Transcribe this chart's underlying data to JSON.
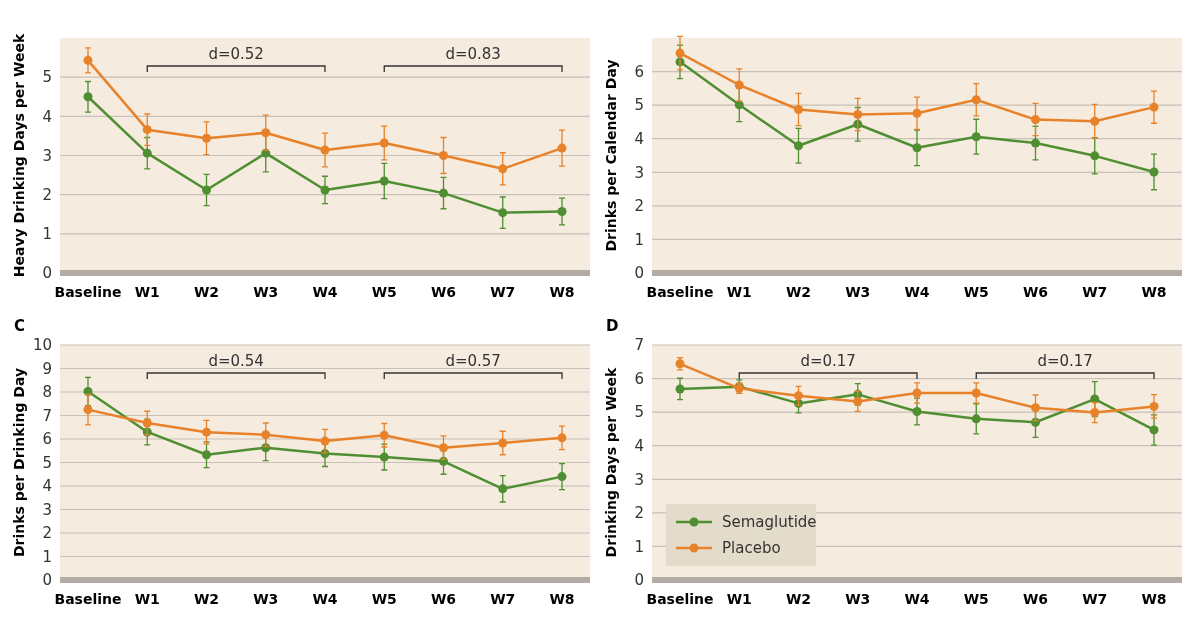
{
  "chart_data": [
    {
      "type": "line",
      "ylabel": "Heavy Drinking Days per Week",
      "categories": [
        "Baseline",
        "W1",
        "W2",
        "W3",
        "W4",
        "W5",
        "W6",
        "W7",
        "W8"
      ],
      "ylim": [
        0,
        6
      ],
      "yticks": [
        0,
        1,
        2,
        3,
        4,
        5
      ],
      "grid": "y",
      "marker": "circle",
      "legend": false,
      "annotations": [
        "d=0.52",
        "d=0.83"
      ],
      "series": [
        {
          "color": "#4f8f32",
          "values": [
            4.5,
            3.06,
            2.12,
            3.06,
            2.12,
            2.35,
            2.04,
            1.54,
            1.57
          ],
          "errors": [
            0.39,
            0.4,
            0.4,
            0.48,
            0.35,
            0.45,
            0.4,
            0.4,
            0.34
          ]
        },
        {
          "color": "#e8822a",
          "values": [
            5.43,
            3.66,
            3.44,
            3.58,
            3.14,
            3.32,
            3.0,
            2.66,
            3.19
          ],
          "errors": [
            0.32,
            0.4,
            0.42,
            0.45,
            0.43,
            0.43,
            0.46,
            0.41,
            0.46
          ]
        }
      ]
    },
    {
      "type": "line",
      "ylabel": "Drinks per Calendar Day",
      "categories": [
        "Baseline",
        "W1",
        "W2",
        "W3",
        "W4",
        "W5",
        "W6",
        "W7",
        "W8"
      ],
      "ylim": [
        0,
        7
      ],
      "yticks": [
        0,
        1,
        2,
        3,
        4,
        5,
        6
      ],
      "grid": "y",
      "marker": "circle",
      "legend": false,
      "series": [
        {
          "color": "#4f8f32",
          "values": [
            6.29,
            5.01,
            3.79,
            4.43,
            3.73,
            4.06,
            3.87,
            3.49,
            3.01
          ],
          "errors": [
            0.5,
            0.5,
            0.52,
            0.5,
            0.53,
            0.52,
            0.5,
            0.54,
            0.53
          ]
        },
        {
          "color": "#e8822a",
          "values": [
            6.55,
            5.6,
            4.87,
            4.72,
            4.76,
            5.16,
            4.57,
            4.52,
            4.94
          ],
          "errors": [
            0.5,
            0.48,
            0.48,
            0.48,
            0.48,
            0.48,
            0.48,
            0.5,
            0.48
          ]
        }
      ]
    },
    {
      "type": "line",
      "title": "C",
      "ylabel": "Drinks per Drinking Day",
      "categories": [
        "Baseline",
        "W1",
        "W2",
        "W3",
        "W4",
        "W5",
        "W6",
        "W7",
        "W8"
      ],
      "ylim": [
        0,
        10
      ],
      "yticks": [
        0,
        1,
        2,
        3,
        4,
        5,
        6,
        7,
        8,
        9,
        10
      ],
      "grid": "y",
      "marker": "circle",
      "legend": false,
      "annotations": [
        "d=0.54",
        "d=0.57"
      ],
      "series": [
        {
          "color": "#4f8f32",
          "values": [
            8.02,
            6.3,
            5.33,
            5.63,
            5.38,
            5.23,
            5.05,
            3.88,
            4.4
          ],
          "errors": [
            0.6,
            0.55,
            0.55,
            0.55,
            0.55,
            0.55,
            0.55,
            0.56,
            0.55
          ]
        },
        {
          "color": "#e8822a",
          "values": [
            7.25,
            6.68,
            6.29,
            6.18,
            5.91,
            6.16,
            5.63,
            5.83,
            6.05
          ],
          "errors": [
            0.65,
            0.5,
            0.5,
            0.5,
            0.5,
            0.5,
            0.5,
            0.5,
            0.5
          ]
        }
      ]
    },
    {
      "type": "line",
      "title": "D",
      "ylabel": "Drinking Days per Week",
      "categories": [
        "Baseline",
        "W1",
        "W2",
        "W3",
        "W4",
        "W5",
        "W6",
        "W7",
        "W8"
      ],
      "ylim": [
        0,
        7
      ],
      "yticks": [
        0,
        1,
        2,
        3,
        4,
        5,
        6,
        7
      ],
      "grid": "y",
      "marker": "circle",
      "legend": "bottom left",
      "annotations": [
        "d=0.17",
        "d=0.17"
      ],
      "series": [
        {
          "name": "Semaglutide",
          "color": "#4f8f32",
          "values": [
            5.69,
            5.76,
            5.26,
            5.53,
            5.02,
            4.8,
            4.7,
            5.39,
            4.47
          ],
          "errors": [
            0.32,
            0.2,
            0.28,
            0.32,
            0.4,
            0.45,
            0.45,
            0.52,
            0.45
          ]
        },
        {
          "name": "Placebo",
          "color": "#e8822a",
          "values": [
            6.44,
            5.71,
            5.49,
            5.32,
            5.57,
            5.57,
            5.13,
            4.99,
            5.17
          ],
          "errors": [
            0.18,
            0.15,
            0.28,
            0.3,
            0.3,
            0.3,
            0.38,
            0.3,
            0.35
          ]
        }
      ]
    }
  ]
}
